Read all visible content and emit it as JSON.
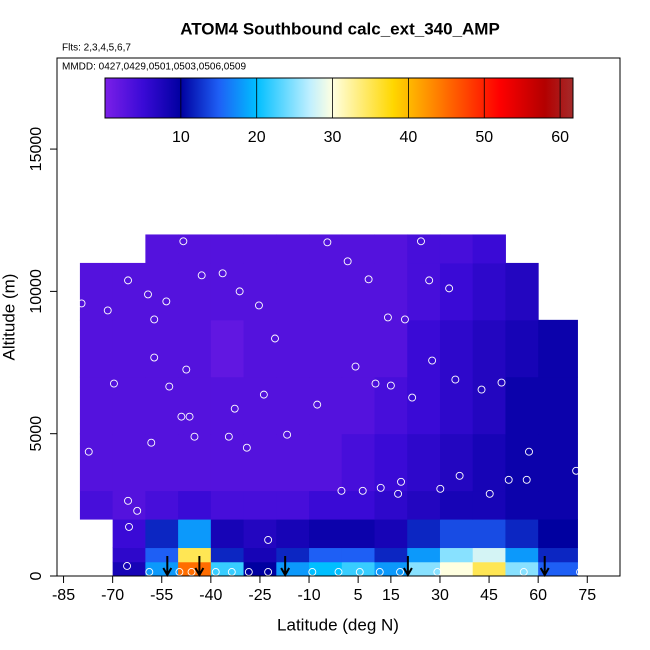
{
  "chart_data": {
    "type": "curtain",
    "title": "ATOM4 Southbound calc_ext_340_AMP",
    "flights_label": "Flts: 2,3,4,5,6,7",
    "dates_label": "MMDD: 0427,0429,0501,0503,0506,0509",
    "x_label": "Latitude (deg N)",
    "y_label": "Altitude (m)",
    "xlim": [
      -87,
      85
    ],
    "ylim": [
      0,
      18200
    ],
    "xticks": [
      -85,
      -70,
      -55,
      -40,
      -25,
      -10,
      5,
      15,
      30,
      45,
      60,
      75
    ],
    "yticks": [
      0,
      5000,
      10000,
      15000
    ],
    "lat_edges": [
      -80,
      -70,
      -60,
      -50,
      -40,
      -30,
      -20,
      -10,
      0,
      10,
      20,
      30,
      40,
      50,
      60,
      72
    ],
    "alt_edges": [
      0,
      500,
      1000,
      2000,
      3000,
      5000,
      7000,
      9000,
      11000,
      12000
    ],
    "z": [
      [
        null,
        8,
        18,
        45,
        22,
        10,
        18,
        20,
        22,
        18,
        25,
        30,
        35,
        25,
        15
      ],
      [
        null,
        6,
        15,
        35,
        12,
        8,
        12,
        15,
        15,
        12,
        18,
        25,
        28,
        18,
        12
      ],
      [
        null,
        5,
        12,
        18,
        8,
        7,
        8,
        9,
        9,
        8,
        12,
        14,
        14,
        12,
        10
      ],
      [
        4,
        3,
        4,
        5,
        4,
        4,
        4,
        5,
        5,
        6,
        7,
        8,
        8,
        9,
        9
      ],
      [
        3,
        3,
        3,
        3,
        3,
        3,
        3,
        3,
        4,
        5,
        6,
        7,
        8,
        9,
        9
      ],
      [
        3,
        3,
        3,
        3,
        3,
        3,
        3,
        3,
        3,
        4,
        5,
        6,
        7,
        9,
        9
      ],
      [
        3,
        3,
        3,
        3,
        2,
        3,
        3,
        3,
        3,
        3,
        5,
        6,
        7,
        8,
        9
      ],
      [
        3,
        3,
        3,
        3,
        3,
        3,
        3,
        3,
        3,
        3,
        4,
        5,
        6,
        7,
        null
      ],
      [
        null,
        null,
        3,
        3,
        3,
        3,
        3,
        3,
        3,
        3,
        4,
        4,
        5,
        null,
        null
      ]
    ],
    "clim": [
      0,
      61.7
    ],
    "cticks": [
      10,
      20,
      30,
      40,
      50,
      60
    ],
    "colorscale": [
      {
        "value": 0,
        "color": "#7b1fe8"
      },
      {
        "value": 5,
        "color": "#3a0ad6"
      },
      {
        "value": 10,
        "color": "#0000a0"
      },
      {
        "value": 15,
        "color": "#1e5ff5"
      },
      {
        "value": 20,
        "color": "#00bfff"
      },
      {
        "value": 27,
        "color": "#bfefff"
      },
      {
        "value": 30,
        "color": "#ffffe0"
      },
      {
        "value": 38,
        "color": "#ffd700"
      },
      {
        "value": 43,
        "color": "#ff8c00"
      },
      {
        "value": 52,
        "color": "#ff0000"
      },
      {
        "value": 58,
        "color": "#b30000"
      },
      {
        "value": 61.7,
        "color": "#a52a2a"
      }
    ],
    "samples": {
      "lat": [
        -79.5,
        -71.5,
        -63.2,
        -65.3,
        -59.2,
        -57.3,
        -53.6,
        -48.4,
        -42.8,
        -36.4,
        -31.2,
        -25.3,
        -20.4,
        -4.4,
        1.8,
        8.2,
        14.1,
        19.3,
        24.2,
        26.7,
        32.8,
        27.6,
        -57.3,
        -69.6,
        -52.7,
        -47.5,
        -23.8,
        -7.5,
        4.2,
        10.3,
        15.0,
        21.5,
        34.7,
        42.7,
        48.8,
        -77.3,
        -58.2,
        -49.0,
        -46.5,
        -45.0,
        -34.5,
        -32.7,
        -29.0,
        -16.7,
        -0.1,
        6.4,
        11.9,
        17.2,
        18.1,
        30.1,
        36.0,
        45.2,
        51.0,
        56.5,
        57.2,
        71.6,
        -65.3,
        -62.5,
        -65.0,
        -22.5,
        -65.6,
        -58.8,
        -49.6,
        -45.9,
        -38.5,
        -33.6,
        -28.4,
        -22.5,
        -9.0,
        -1.0,
        5.5,
        11.6,
        17.8,
        29.2,
        55.6,
        72.8
      ],
      "alt": [
        9577,
        9331,
        11373,
        10387,
        9894,
        9014,
        9648,
        11761,
        10563,
        10634,
        10000,
        9507,
        8345,
        11725,
        11056,
        10423,
        9085,
        9014,
        11761,
        10387,
        10106,
        7570,
        7676,
        6761,
        6655,
        7254,
        6373,
        6021,
        7359,
        6761,
        6690,
        6268,
        6901,
        6549,
        6796,
        4366,
        4683,
        5599,
        5599,
        4894,
        4894,
        5880,
        4507,
        4965,
        2993,
        2993,
        3099,
        2887,
        3310,
        3063,
        3521,
        2887,
        3380,
        3380,
        4366,
        3697,
        2641,
        2289,
        1725,
        1268,
        352,
        141,
        141,
        141,
        141,
        141,
        141,
        141,
        141,
        141,
        141,
        141,
        141,
        141,
        141,
        141
      ]
    },
    "arrows_x": [
      -53.3,
      -43.5,
      -17.3,
      20.2,
      62
    ]
  }
}
